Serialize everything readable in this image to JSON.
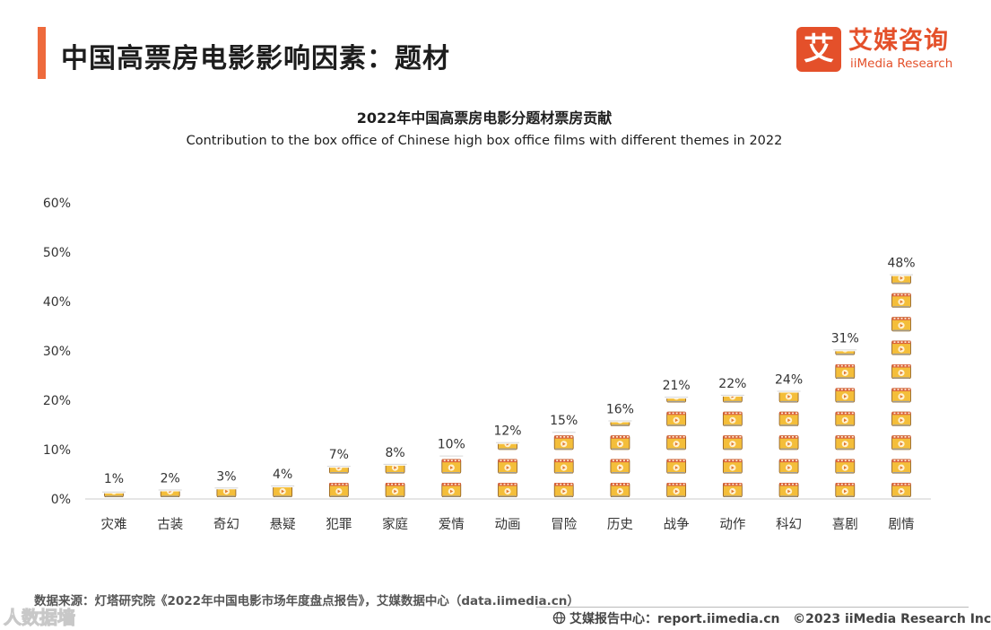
{
  "header": {
    "title": "中国高票房电影影响因素：题材"
  },
  "logo": {
    "icon_char": "艾",
    "name_cn": "艾媒咨询",
    "name_en": "iiMedia Research"
  },
  "colors": {
    "accent": "#ee6a3c",
    "brand": "#e4502a",
    "ticket_fill": "#f4be3a",
    "ticket_stripe": "#d9603a",
    "ticket_play": "#e0772f"
  },
  "chart_data": {
    "type": "bar",
    "title": "2022年中国高票房电影分题材票房贡献",
    "subtitle": "Contribution to the box office of Chinese high box office films with different themes in 2022",
    "categories": [
      "灾难",
      "古装",
      "奇幻",
      "悬疑",
      "犯罪",
      "家庭",
      "爱情",
      "动画",
      "冒险",
      "历史",
      "战争",
      "动作",
      "科幻",
      "喜剧",
      "剧情"
    ],
    "values": [
      1,
      2,
      3,
      4,
      7,
      8,
      10,
      12,
      15,
      16,
      21,
      22,
      24,
      31,
      48
    ],
    "value_labels": [
      "1%",
      "2%",
      "3%",
      "4%",
      "7%",
      "8%",
      "10%",
      "12%",
      "15%",
      "16%",
      "21%",
      "22%",
      "24%",
      "31%",
      "48%"
    ],
    "unit": "%",
    "ylim": [
      0,
      60
    ],
    "yticks": [
      0,
      10,
      20,
      30,
      40,
      50,
      60
    ],
    "ytick_labels": [
      "0%",
      "10%",
      "20%",
      "30%",
      "40%",
      "50%",
      "60%"
    ],
    "xlabel": "",
    "ylabel": "",
    "grid": false,
    "legend": "none",
    "mark_style": "stacked film-ticket icons, one per 5%"
  },
  "footer": {
    "source": "数据来源：灯塔研究院《2022年中国电影市场年度盘点报告》，艾媒数据中心（data.iimedia.cn）",
    "watermark": "人数据墙",
    "report_center": "艾媒报告中心：report.iimedia.cn",
    "copyright": "©2023  iiMedia Research  Inc"
  }
}
